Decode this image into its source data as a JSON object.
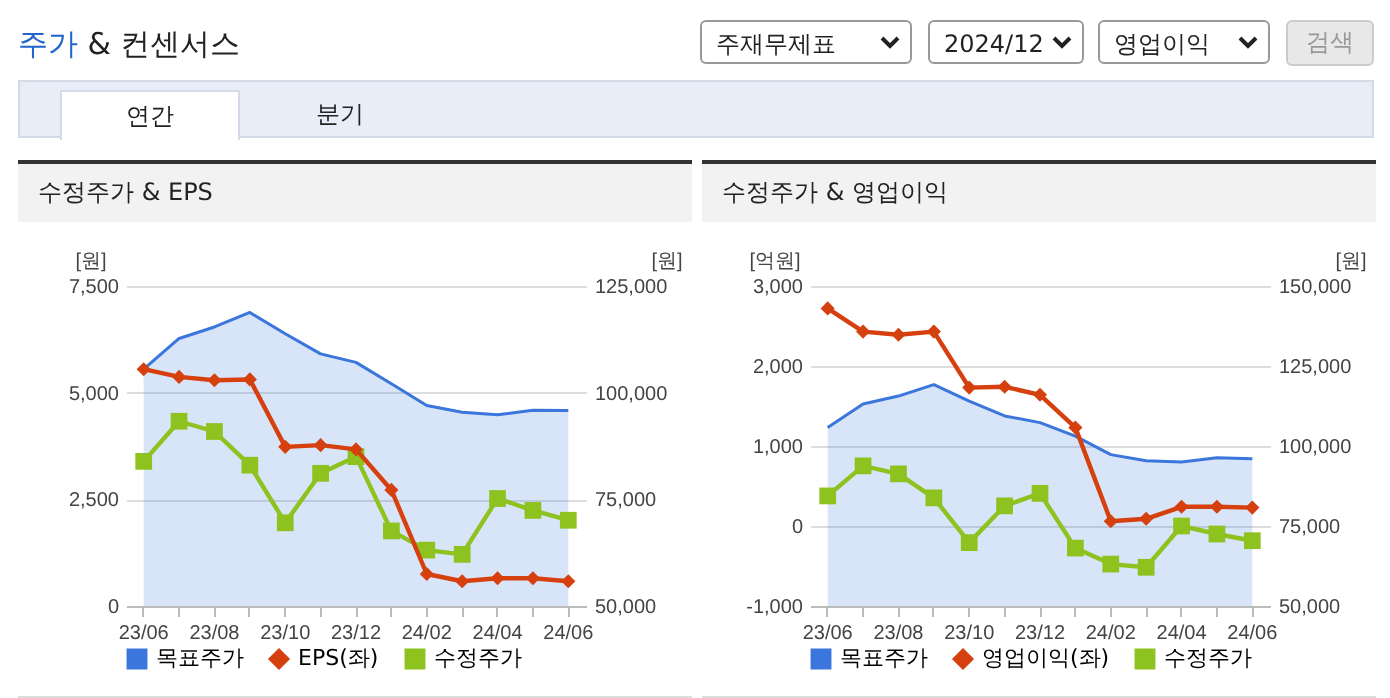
{
  "chart_data": [
    {
      "type": "other",
      "title": "주가 & 컨센서스",
      "annotations": [
        "주재무제표",
        "2024/12",
        "영업이익",
        "검색",
        "연간",
        "분기"
      ]
    },
    {
      "type": "line",
      "title": "수정주가 & EPS",
      "categories": [
        "23/06",
        null,
        "23/08",
        null,
        "23/10",
        null,
        "23/12",
        null,
        "24/02",
        null,
        "24/04",
        null,
        "24/06"
      ],
      "ylabel": "[원]",
      "y2label": "[원]",
      "ylim": [
        0,
        7500
      ],
      "yticks": [
        0,
        {
          "value": 2500,
          "label": "2,500"
        },
        {
          "value": 5000,
          "label": "5,000"
        },
        {
          "value": 7500,
          "label": "7,500"
        }
      ],
      "y2lim": [
        50000,
        125000
      ],
      "y2ticks": [
        {
          "value": 50000,
          "label": "50,000"
        },
        {
          "value": 75000,
          "label": "75,000"
        },
        {
          "value": 100000,
          "label": "100,000"
        },
        {
          "value": 125000,
          "label": "125,000"
        }
      ],
      "grid": "y",
      "legend": "bottom",
      "series": [
        {
          "name": "목표주가",
          "type": "area",
          "axis": "y2",
          "color": "#3a76dc",
          "values": [
            105500,
            112700,
            115400,
            118800,
            113800,
            109100,
            107100,
            102100,
            97000,
            95400,
            94800,
            95900,
            95800
          ]
        },
        {
          "name": "EPS(좌)",
          "type": "line",
          "axis": "y",
          "marker": "diamond",
          "color": "#d5400e",
          "values": [
            5550,
            5370,
            5290,
            5310,
            3730,
            3770,
            3670,
            2720,
            750,
            580,
            650,
            650,
            580
          ]
        },
        {
          "name": "수정주가",
          "type": "line",
          "axis": "y2",
          "marker": "square",
          "color": "#8dc21f",
          "values": [
            83900,
            93300,
            90900,
            83000,
            69500,
            81100,
            85000,
            67600,
            63100,
            62100,
            75200,
            72400,
            70100
          ]
        }
      ]
    },
    {
      "type": "line",
      "title": "수정주가 & 영업이익",
      "categories": [
        "23/06",
        null,
        "23/08",
        null,
        "23/10",
        null,
        "23/12",
        null,
        "24/02",
        null,
        "24/04",
        null,
        "24/06"
      ],
      "ylabel": "[억원]",
      "y2label": "[원]",
      "ylim": [
        -1000,
        3000
      ],
      "yticks": [
        {
          "value": -1000,
          "label": "-1,000"
        },
        0,
        {
          "value": 1000,
          "label": "1,000"
        },
        {
          "value": 2000,
          "label": "2,000"
        },
        {
          "value": 3000,
          "label": "3,000"
        }
      ],
      "y2lim": [
        50000,
        150000
      ],
      "y2ticks": [
        {
          "value": 50000,
          "label": "50,000"
        },
        {
          "value": 75000,
          "label": "75,000"
        },
        {
          "value": 100000,
          "label": "100,000"
        },
        {
          "value": 125000,
          "label": "125,000"
        },
        {
          "value": 150000,
          "label": "150,000"
        }
      ],
      "grid": "y",
      "legend": "bottom",
      "series": [
        {
          "name": "목표주가",
          "type": "area",
          "axis": "y2",
          "color": "#3a76dc",
          "values": [
            105800,
            113100,
            115600,
            119200,
            114000,
            109400,
            107300,
            103100,
            97300,
            95400,
            95000,
            96300,
            96000
          ]
        },
        {
          "name": "영업이익(좌)",
          "type": "line",
          "axis": "y",
          "marker": "diamond",
          "color": "#d5400e",
          "values": [
            2720,
            2430,
            2390,
            2430,
            1730,
            1740,
            1640,
            1230,
            60,
            90,
            240,
            240,
            230
          ]
        },
        {
          "name": "수정주가",
          "type": "line",
          "axis": "y2",
          "marker": "square",
          "color": "#8dc21f",
          "values": [
            84400,
            93800,
            91300,
            83800,
            69800,
            81300,
            85200,
            68100,
            63100,
            62100,
            75000,
            72500,
            70400
          ]
        }
      ]
    }
  ]
}
